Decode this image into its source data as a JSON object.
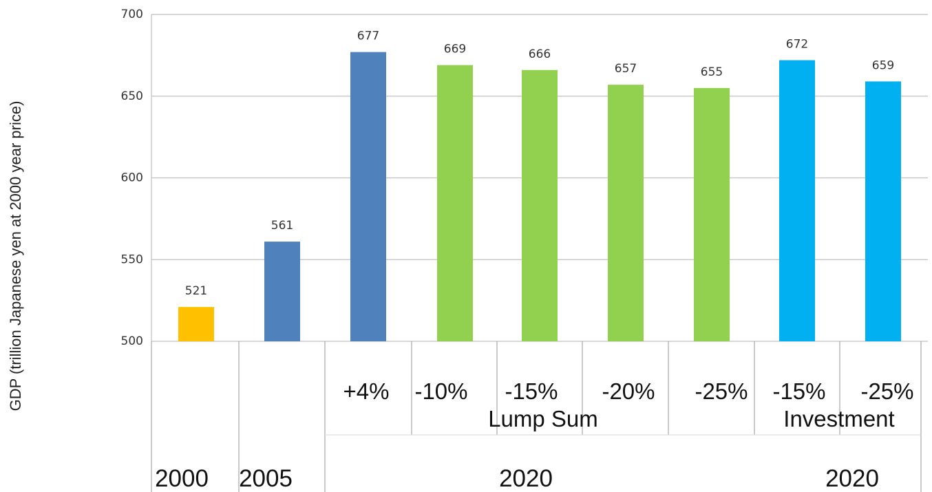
{
  "chart_data": {
    "type": "bar",
    "ylabel": "GDP (trillion Japanese yen at 2000 year price)",
    "ylim": [
      500,
      700
    ],
    "yticks": [
      500,
      550,
      600,
      650,
      700
    ],
    "grid": true,
    "values": [
      521,
      561,
      677,
      669,
      666,
      657,
      655,
      672,
      659
    ],
    "colors": [
      "#FFC000",
      "#4F81BD",
      "#4F81BD",
      "#92D050",
      "#92D050",
      "#92D050",
      "#92D050",
      "#00B0F0",
      "#00B0F0"
    ],
    "scenario_labels": [
      "",
      "",
      "+4%",
      "-10%",
      "-15%",
      "-20%",
      "-25%",
      "-15%",
      "-25%"
    ],
    "group_labels": [
      "Lump Sum",
      "Investment"
    ],
    "year_labels": [
      "2000",
      "2005",
      "2020",
      "2020"
    ]
  }
}
